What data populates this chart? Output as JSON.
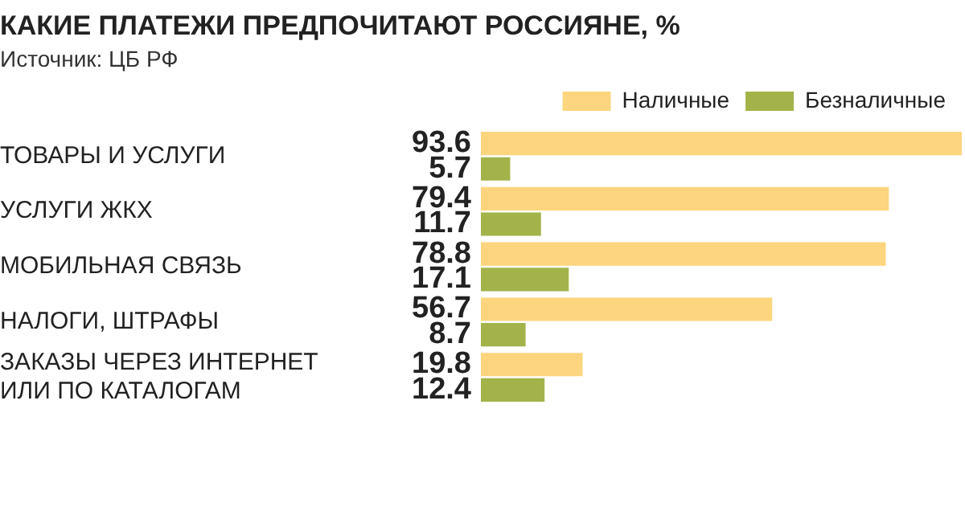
{
  "chart_data": {
    "type": "bar",
    "orientation": "horizontal",
    "title": "КАКИЕ ПЛАТЕЖИ ПРЕДПОЧИТАЮТ РОССИЯНЕ, %",
    "subtitle": "Источник: ЦБ РФ",
    "categories": [
      "ТОВАРЫ И УСЛУГИ",
      "УСЛУГИ ЖКХ",
      "МОБИЛЬНАЯ СВЯЗЬ",
      "НАЛОГИ, ШТРАФЫ",
      "ЗАКАЗЫ ЧЕРЕЗ ИНТЕРНЕТ ИЛИ ПО КАТАЛОГАМ"
    ],
    "series": [
      {
        "name": "Наличные",
        "color": "#fdd57e",
        "values": [
          93.6,
          79.4,
          78.8,
          56.7,
          19.8
        ]
      },
      {
        "name": "Безналичные",
        "color": "#a3b34a",
        "values": [
          5.7,
          11.7,
          17.1,
          8.7,
          12.4
        ]
      }
    ],
    "data_labels": true,
    "legend": "top right",
    "grid": false,
    "tick_labels": "y"
  }
}
